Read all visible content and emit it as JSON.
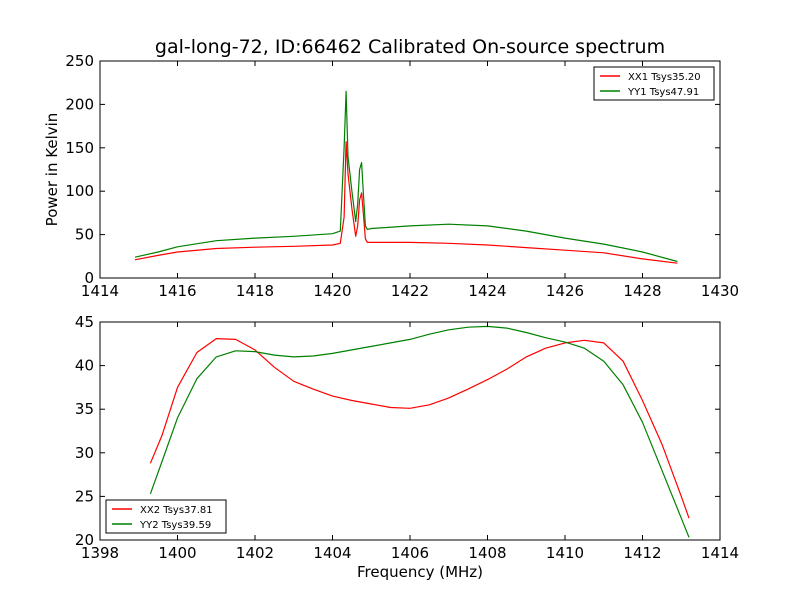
{
  "title": "gal-long-72, ID:66462 Calibrated On-source spectrum",
  "chart_data": [
    {
      "type": "line",
      "xlabel": "",
      "ylabel": "Power in Kelvin",
      "xlim": [
        1414,
        1430
      ],
      "ylim": [
        0,
        250
      ],
      "xticks": [
        1414,
        1416,
        1418,
        1420,
        1422,
        1424,
        1426,
        1428,
        1430
      ],
      "yticks": [
        0,
        50,
        100,
        150,
        200,
        250
      ],
      "grid": false,
      "legend_position": "top-right",
      "series": [
        {
          "name": "XX1 Tsys35.20",
          "color": "#ff0000",
          "x": [
            1414.9,
            1415.5,
            1416.0,
            1417.0,
            1418.0,
            1419.0,
            1420.0,
            1420.2,
            1420.3,
            1420.35,
            1420.4,
            1420.5,
            1420.6,
            1420.65,
            1420.7,
            1420.75,
            1420.8,
            1420.85,
            1420.9,
            1421.0,
            1422.0,
            1423.0,
            1424.0,
            1425.0,
            1426.0,
            1427.0,
            1428.0,
            1428.9
          ],
          "y": [
            21,
            26,
            30,
            34,
            35.5,
            36.5,
            38,
            40,
            70,
            157,
            120,
            80,
            48,
            60,
            90,
            98,
            72,
            45,
            41,
            41,
            41,
            40,
            38,
            35,
            32,
            29,
            22,
            17
          ]
        },
        {
          "name": "YY1 Tsys47.91",
          "color": "#008000",
          "x": [
            1414.9,
            1415.5,
            1416.0,
            1417.0,
            1418.0,
            1419.0,
            1420.0,
            1420.2,
            1420.3,
            1420.35,
            1420.4,
            1420.5,
            1420.6,
            1420.65,
            1420.7,
            1420.75,
            1420.8,
            1420.85,
            1420.9,
            1421.0,
            1422.0,
            1423.0,
            1424.0,
            1425.0,
            1426.0,
            1427.0,
            1428.0,
            1428.9
          ],
          "y": [
            24,
            30,
            36,
            43,
            46,
            48,
            51,
            54,
            150,
            215,
            140,
            100,
            65,
            85,
            125,
            133,
            95,
            60,
            56,
            57,
            60,
            62,
            60,
            54,
            46,
            39,
            30,
            19
          ]
        }
      ]
    },
    {
      "type": "line",
      "xlabel": "Frequency (MHz)",
      "ylabel": "",
      "xlim": [
        1398,
        1414
      ],
      "ylim": [
        20,
        45
      ],
      "xticks": [
        1398,
        1400,
        1402,
        1404,
        1406,
        1408,
        1410,
        1412,
        1414
      ],
      "yticks": [
        20,
        25,
        30,
        35,
        40,
        45
      ],
      "grid": false,
      "legend_position": "bottom-left",
      "series": [
        {
          "name": "XX2 Tsys37.81",
          "color": "#ff0000",
          "x": [
            1399.3,
            1399.6,
            1400.0,
            1400.5,
            1401.0,
            1401.5,
            1402.0,
            1402.5,
            1403.0,
            1403.5,
            1404.0,
            1404.5,
            1405.0,
            1405.5,
            1406.0,
            1406.5,
            1407.0,
            1407.5,
            1408.0,
            1408.5,
            1409.0,
            1409.5,
            1410.0,
            1410.5,
            1411.0,
            1411.5,
            1412.0,
            1412.5,
            1413.0,
            1413.2
          ],
          "y": [
            28.8,
            32,
            37.5,
            41.5,
            43.1,
            43,
            41.8,
            39.8,
            38.2,
            37.3,
            36.5,
            36,
            35.6,
            35.2,
            35.1,
            35.5,
            36.3,
            37.3,
            38.4,
            39.6,
            41,
            42,
            42.6,
            42.9,
            42.6,
            40.5,
            36,
            31,
            25,
            22.5
          ]
        },
        {
          "name": "YY2 Tsys39.59",
          "color": "#008000",
          "x": [
            1399.3,
            1399.6,
            1400.0,
            1400.5,
            1401.0,
            1401.5,
            1402.0,
            1402.5,
            1403.0,
            1403.5,
            1404.0,
            1404.5,
            1405.0,
            1405.5,
            1406.0,
            1406.5,
            1407.0,
            1407.5,
            1408.0,
            1408.5,
            1409.0,
            1409.5,
            1410.0,
            1410.5,
            1411.0,
            1411.5,
            1412.0,
            1412.5,
            1413.0,
            1413.2
          ],
          "y": [
            25.3,
            29,
            34,
            38.5,
            41,
            41.7,
            41.6,
            41.2,
            41,
            41.1,
            41.4,
            41.8,
            42.2,
            42.6,
            43,
            43.6,
            44.1,
            44.4,
            44.5,
            44.3,
            43.8,
            43.2,
            42.7,
            42,
            40.5,
            37.8,
            33.5,
            28,
            22.5,
            20.3
          ]
        }
      ]
    }
  ]
}
